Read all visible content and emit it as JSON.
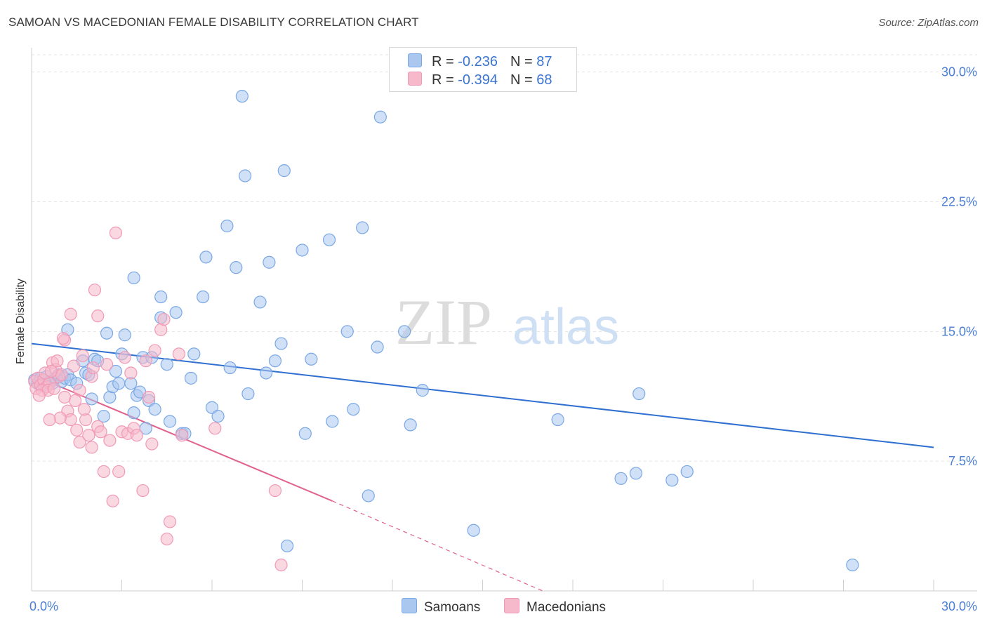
{
  "header": {
    "title": "SAMOAN VS MACEDONIAN FEMALE DISABILITY CORRELATION CHART",
    "source": "Source: ZipAtlas.com"
  },
  "legend": {
    "samoans": {
      "r_label": "R = ",
      "r_value": "-0.236",
      "n_label": "N = ",
      "n_value": "87",
      "color": "#a9c7ef"
    },
    "macedonians": {
      "r_label": "R = ",
      "r_value": "-0.394",
      "n_label": "N = ",
      "n_value": "68",
      "color": "#f6b8cb"
    }
  },
  "bottom_legend": {
    "samoans": "Samoans",
    "macedonians": "Macedonians"
  },
  "chart_data": {
    "type": "scatter",
    "ylabel": "Female Disability",
    "xlim": [
      0,
      30
    ],
    "ylim": [
      0,
      31
    ],
    "x_tick_labels": [
      {
        "value": 0,
        "label": "0.0%"
      },
      {
        "value": 30,
        "label": "30.0%"
      }
    ],
    "y_tick_labels": [
      {
        "value": 7.5,
        "label": "7.5%"
      },
      {
        "value": 15,
        "label": "15.0%"
      },
      {
        "value": 22.5,
        "label": "22.5%"
      },
      {
        "value": 30,
        "label": "30.0%"
      }
    ],
    "grid": true,
    "watermark": {
      "zip": "ZIP",
      "atlas": "atlas"
    },
    "series": [
      {
        "name": "Samoans",
        "color": "#7aa8e6",
        "fill": "#a9c7ef",
        "line_color": "#2f6fd0",
        "trend": {
          "x0": 0,
          "y0": 14.3,
          "x1": 30,
          "y1": 8.3
        },
        "points": [
          [
            0.1,
            12.2
          ],
          [
            0.2,
            12.0
          ],
          [
            0.3,
            12.3
          ],
          [
            0.4,
            11.9
          ],
          [
            0.5,
            12.4
          ],
          [
            0.6,
            12.1
          ],
          [
            0.7,
            12.0
          ],
          [
            0.8,
            12.3
          ],
          [
            0.9,
            12.5
          ],
          [
            1.0,
            12.1
          ],
          [
            1.1,
            12.3
          ],
          [
            1.2,
            12.5
          ],
          [
            1.3,
            12.2
          ],
          [
            1.5,
            12.0
          ],
          [
            1.7,
            13.3
          ],
          [
            1.8,
            12.6
          ],
          [
            1.9,
            12.5
          ],
          [
            2.0,
            11.1
          ],
          [
            2.1,
            13.4
          ],
          [
            2.2,
            13.3
          ],
          [
            2.4,
            10.1
          ],
          [
            2.5,
            14.9
          ],
          [
            2.6,
            11.2
          ],
          [
            2.7,
            11.8
          ],
          [
            2.8,
            12.7
          ],
          [
            2.9,
            12.0
          ],
          [
            3.0,
            13.7
          ],
          [
            3.1,
            14.8
          ],
          [
            3.3,
            12.0
          ],
          [
            3.4,
            10.3
          ],
          [
            3.5,
            11.3
          ],
          [
            3.6,
            11.5
          ],
          [
            3.7,
            13.5
          ],
          [
            3.9,
            11.0
          ],
          [
            3.8,
            9.4
          ],
          [
            4.1,
            10.5
          ],
          [
            4.0,
            13.5
          ],
          [
            4.3,
            15.8
          ],
          [
            4.5,
            13.1
          ],
          [
            4.6,
            9.8
          ],
          [
            4.8,
            16.1
          ],
          [
            5.0,
            9.1
          ],
          [
            5.1,
            9.1
          ],
          [
            5.3,
            12.3
          ],
          [
            5.4,
            13.7
          ],
          [
            5.7,
            17.0
          ],
          [
            5.8,
            19.3
          ],
          [
            6.0,
            10.6
          ],
          [
            6.2,
            10.1
          ],
          [
            6.5,
            21.1
          ],
          [
            6.6,
            12.9
          ],
          [
            6.8,
            18.7
          ],
          [
            7.0,
            28.6
          ],
          [
            7.1,
            24.0
          ],
          [
            7.2,
            11.4
          ],
          [
            7.6,
            16.7
          ],
          [
            7.8,
            12.6
          ],
          [
            7.9,
            19.0
          ],
          [
            8.1,
            13.3
          ],
          [
            8.3,
            14.3
          ],
          [
            8.4,
            24.3
          ],
          [
            8.5,
            2.6
          ],
          [
            9.0,
            19.7
          ],
          [
            9.1,
            9.1
          ],
          [
            9.3,
            13.4
          ],
          [
            9.9,
            20.3
          ],
          [
            10.0,
            9.8
          ],
          [
            10.5,
            15.0
          ],
          [
            10.7,
            10.5
          ],
          [
            11.0,
            21.0
          ],
          [
            11.2,
            5.5
          ],
          [
            11.5,
            14.1
          ],
          [
            11.6,
            27.4
          ],
          [
            12.4,
            15.0
          ],
          [
            12.6,
            9.6
          ],
          [
            13.0,
            11.6
          ],
          [
            14.7,
            3.5
          ],
          [
            17.5,
            9.9
          ],
          [
            19.6,
            6.5
          ],
          [
            20.1,
            6.8
          ],
          [
            20.2,
            11.4
          ],
          [
            21.3,
            6.4
          ],
          [
            21.8,
            6.9
          ],
          [
            27.3,
            1.5
          ],
          [
            3.4,
            18.1
          ],
          [
            4.3,
            17.0
          ],
          [
            1.2,
            15.1
          ]
        ]
      },
      {
        "name": "Macedonians",
        "color": "#f19ab6",
        "fill": "#f6b8cb",
        "line_color": "#e0628d",
        "trend": {
          "x0": 0,
          "y0": 12.5,
          "x1": 10,
          "y1": 5.2,
          "dash_x1": 17.0,
          "dash_y1": 0
        },
        "points": [
          [
            0.1,
            12.1
          ],
          [
            0.15,
            11.7
          ],
          [
            0.2,
            12.3
          ],
          [
            0.3,
            11.9
          ],
          [
            0.4,
            12.2
          ],
          [
            0.5,
            11.8
          ],
          [
            0.6,
            12.0
          ],
          [
            0.7,
            13.2
          ],
          [
            0.8,
            12.8
          ],
          [
            0.9,
            12.4
          ],
          [
            1.0,
            12.5
          ],
          [
            1.1,
            14.5
          ],
          [
            1.1,
            11.2
          ],
          [
            1.2,
            10.4
          ],
          [
            1.3,
            9.9
          ],
          [
            1.3,
            16.0
          ],
          [
            1.4,
            13.0
          ],
          [
            1.5,
            9.3
          ],
          [
            1.6,
            11.6
          ],
          [
            1.6,
            8.6
          ],
          [
            1.7,
            13.6
          ],
          [
            1.8,
            9.9
          ],
          [
            1.9,
            9.0
          ],
          [
            2.0,
            12.4
          ],
          [
            2.0,
            8.3
          ],
          [
            2.1,
            17.4
          ],
          [
            2.2,
            9.5
          ],
          [
            2.2,
            15.9
          ],
          [
            2.3,
            9.2
          ],
          [
            2.4,
            6.9
          ],
          [
            2.5,
            13.1
          ],
          [
            2.6,
            8.7
          ],
          [
            2.7,
            5.2
          ],
          [
            2.8,
            20.7
          ],
          [
            2.9,
            6.9
          ],
          [
            3.0,
            9.2
          ],
          [
            3.1,
            13.5
          ],
          [
            3.2,
            9.1
          ],
          [
            3.3,
            12.6
          ],
          [
            3.4,
            9.4
          ],
          [
            3.5,
            9.0
          ],
          [
            3.7,
            5.8
          ],
          [
            3.8,
            13.3
          ],
          [
            3.9,
            11.2
          ],
          [
            4.0,
            8.5
          ],
          [
            4.1,
            13.9
          ],
          [
            4.3,
            15.1
          ],
          [
            4.4,
            15.7
          ],
          [
            4.5,
            3.0
          ],
          [
            4.6,
            4.0
          ],
          [
            4.9,
            13.7
          ],
          [
            5.0,
            9.0
          ],
          [
            6.1,
            9.4
          ],
          [
            8.1,
            5.8
          ],
          [
            8.3,
            1.5
          ],
          [
            0.35,
            11.6
          ],
          [
            0.45,
            12.6
          ],
          [
            0.55,
            11.6
          ],
          [
            0.65,
            12.7
          ],
          [
            0.75,
            11.7
          ],
          [
            0.85,
            13.3
          ],
          [
            1.05,
            14.6
          ],
          [
            0.95,
            10.0
          ],
          [
            0.25,
            11.3
          ],
          [
            1.45,
            11.0
          ],
          [
            1.75,
            10.5
          ],
          [
            0.6,
            9.9
          ],
          [
            2.05,
            12.9
          ]
        ]
      }
    ]
  }
}
